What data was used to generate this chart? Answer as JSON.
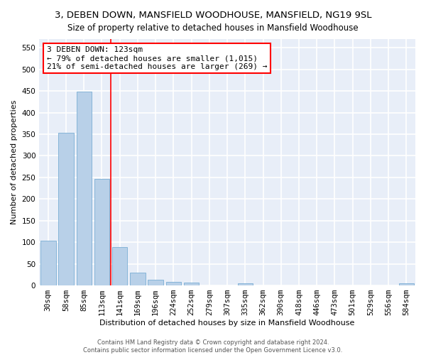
{
  "title": "3, DEBEN DOWN, MANSFIELD WOODHOUSE, MANSFIELD, NG19 9SL",
  "subtitle": "Size of property relative to detached houses in Mansfield Woodhouse",
  "xlabel": "Distribution of detached houses by size in Mansfield Woodhouse",
  "ylabel": "Number of detached properties",
  "categories": [
    "30sqm",
    "58sqm",
    "85sqm",
    "113sqm",
    "141sqm",
    "169sqm",
    "196sqm",
    "224sqm",
    "252sqm",
    "279sqm",
    "307sqm",
    "335sqm",
    "362sqm",
    "390sqm",
    "418sqm",
    "446sqm",
    "473sqm",
    "501sqm",
    "529sqm",
    "556sqm",
    "584sqm"
  ],
  "values": [
    103,
    353,
    448,
    246,
    88,
    30,
    13,
    9,
    6,
    0,
    0,
    5,
    0,
    0,
    0,
    0,
    0,
    0,
    0,
    0,
    5
  ],
  "bar_color": "#b8d0e8",
  "bar_edge_color": "#7aadd4",
  "vline_x": 3.5,
  "vline_color": "red",
  "annotation_line1": "3 DEBEN DOWN: 123sqm",
  "annotation_line2": "← 79% of detached houses are smaller (1,015)",
  "annotation_line3": "21% of semi-detached houses are larger (269) →",
  "annotation_box_color": "white",
  "annotation_box_edge_color": "red",
  "ylim": [
    0,
    570
  ],
  "yticks": [
    0,
    50,
    100,
    150,
    200,
    250,
    300,
    350,
    400,
    450,
    500,
    550
  ],
  "background_color": "#e8eef8",
  "grid_color": "white",
  "footer1": "Contains HM Land Registry data © Crown copyright and database right 2024.",
  "footer2": "Contains public sector information licensed under the Open Government Licence v3.0.",
  "title_fontsize": 9.5,
  "subtitle_fontsize": 8.5,
  "xlabel_fontsize": 8,
  "ylabel_fontsize": 8,
  "tick_fontsize": 7.5,
  "annotation_fontsize": 8,
  "footer_fontsize": 6
}
